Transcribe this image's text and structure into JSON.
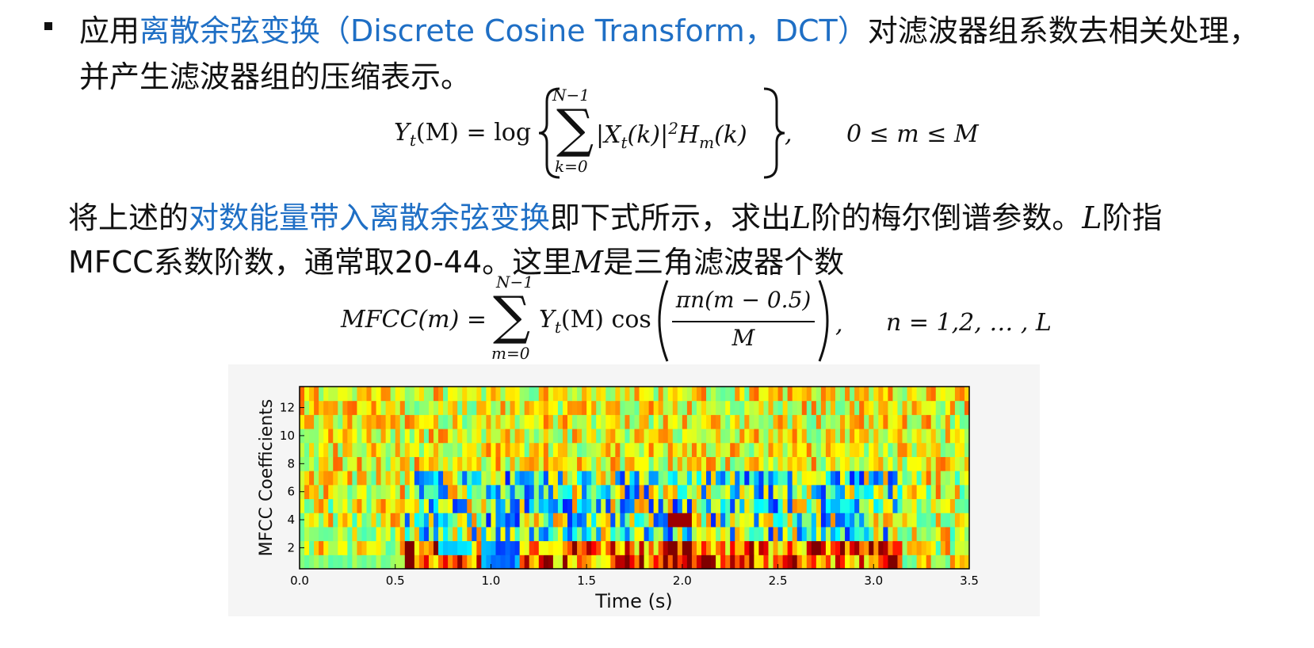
{
  "para1": {
    "prefix": "应用",
    "highlight": "离散余弦变换（Discrete Cosine Transform，DCT）",
    "suffix": "对滤波器组系数去相关处理，",
    "line2": "并产生滤波器组的压缩表示。"
  },
  "eq1": {
    "lhs": "Y",
    "lhs_sub": "t",
    "lhs_arg": "(M) = log",
    "sum_top": "N−1",
    "sum_bottom": "k=0",
    "body": "|X",
    "body_sub": "t",
    "body_2": "(k)|",
    "sup": "2",
    "body_3": "H",
    "body_sub2": "m",
    "body_4": "(k)",
    "comma": ",",
    "condition": "0 ≤ m ≤ M"
  },
  "para2": {
    "prefix": "将上述的",
    "highlight": "对数能量带入离散余弦变换",
    "mid": "即下式所示，求出",
    "L1": "L",
    "mid2": "阶的梅尔倒谱参数。",
    "L2": "L",
    "suffix": "阶指",
    "line2a": "MFCC系数阶数，通常取20-44。这里",
    "M": "M",
    "line2b": "是三角滤波器个数"
  },
  "eq2": {
    "lhs": "MFCC(m) =",
    "sum_top": "N−1",
    "sum_bottom": "m=0",
    "body": "Y",
    "body_sub": "t",
    "body_2": "(M) cos",
    "numer": "πn(m − 0.5)",
    "denom": "M",
    "comma": ",",
    "condition": "n = 1,2, … , L"
  },
  "chart_data": {
    "type": "heatmap",
    "title": "",
    "xlabel": "Time (s)",
    "ylabel": "MFCC Coefficients",
    "xlim": [
      0.0,
      3.5
    ],
    "ylim": [
      1,
      13
    ],
    "x_ticks": [
      "0.0",
      "0.5",
      "1.0",
      "1.5",
      "2.0",
      "2.5",
      "3.0",
      "3.5"
    ],
    "y_ticks": [
      "2",
      "4",
      "6",
      "8",
      "10",
      "12"
    ],
    "colormap": "jet",
    "coefficients": [
      1,
      2,
      3,
      4,
      5,
      6,
      7,
      8,
      9,
      10,
      11,
      12,
      13
    ],
    "time_step_s": 0.025
  }
}
